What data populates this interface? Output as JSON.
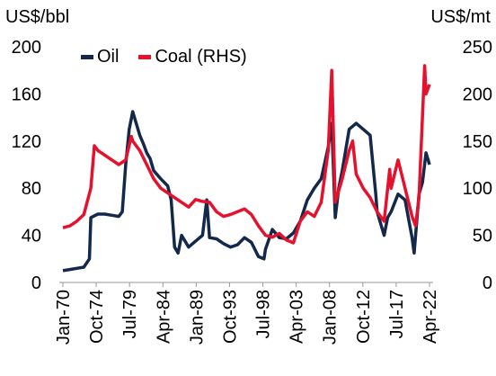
{
  "chart_data": {
    "type": "line",
    "title": "",
    "y_left_label": "US$/bbl",
    "y_right_label": "US$/mt",
    "y_left_lim": [
      0,
      200
    ],
    "y_right_lim": [
      0,
      250
    ],
    "y_left_ticks": [
      "0",
      "40",
      "80",
      "120",
      "160",
      "200"
    ],
    "y_right_ticks": [
      "0",
      "50",
      "100",
      "150",
      "200",
      "250"
    ],
    "x_ticks": [
      "Jan-70",
      "Oct-74",
      "Jul-79",
      "Apr-84",
      "Jan-89",
      "Oct-93",
      "Jul-98",
      "Apr-03",
      "Jan-08",
      "Oct-12",
      "Jul-17",
      "Apr-22"
    ],
    "x_range": [
      1970.0,
      2022.5
    ],
    "legend_position": "top-left",
    "grid": false,
    "series": [
      {
        "name": "Oil",
        "axis": "left",
        "color": "#14284b",
        "points": [
          [
            1970.0,
            10
          ],
          [
            1971.0,
            11
          ],
          [
            1972.0,
            12
          ],
          [
            1973.0,
            13
          ],
          [
            1973.8,
            20
          ],
          [
            1974.0,
            55
          ],
          [
            1975.0,
            58
          ],
          [
            1976.0,
            58
          ],
          [
            1977.0,
            57
          ],
          [
            1978.0,
            56
          ],
          [
            1978.5,
            60
          ],
          [
            1979.0,
            100
          ],
          [
            1979.5,
            130
          ],
          [
            1980.0,
            145
          ],
          [
            1980.5,
            135
          ],
          [
            1981.0,
            125
          ],
          [
            1981.5,
            118
          ],
          [
            1982.0,
            110
          ],
          [
            1982.5,
            105
          ],
          [
            1983.0,
            95
          ],
          [
            1984.0,
            88
          ],
          [
            1985.0,
            82
          ],
          [
            1985.5,
            70
          ],
          [
            1986.0,
            30
          ],
          [
            1986.5,
            25
          ],
          [
            1987.0,
            40
          ],
          [
            1988.0,
            30
          ],
          [
            1989.0,
            35
          ],
          [
            1990.0,
            40
          ],
          [
            1990.6,
            70
          ],
          [
            1991.0,
            38
          ],
          [
            1992.0,
            37
          ],
          [
            1993.0,
            33
          ],
          [
            1994.0,
            30
          ],
          [
            1995.0,
            32
          ],
          [
            1996.0,
            38
          ],
          [
            1997.0,
            34
          ],
          [
            1998.0,
            22
          ],
          [
            1998.8,
            20
          ],
          [
            1999.0,
            28
          ],
          [
            2000.0,
            45
          ],
          [
            2001.0,
            38
          ],
          [
            2002.0,
            37
          ],
          [
            2003.0,
            42
          ],
          [
            2004.0,
            52
          ],
          [
            2005.0,
            70
          ],
          [
            2006.0,
            80
          ],
          [
            2007.0,
            88
          ],
          [
            2008.0,
            115
          ],
          [
            2008.5,
            135
          ],
          [
            2009.0,
            55
          ],
          [
            2009.5,
            80
          ],
          [
            2010.0,
            95
          ],
          [
            2011.0,
            130
          ],
          [
            2012.0,
            135
          ],
          [
            2013.0,
            130
          ],
          [
            2014.0,
            125
          ],
          [
            2014.8,
            75
          ],
          [
            2015.0,
            60
          ],
          [
            2016.0,
            40
          ],
          [
            2016.5,
            55
          ],
          [
            2017.0,
            60
          ],
          [
            2018.0,
            75
          ],
          [
            2019.0,
            70
          ],
          [
            2020.0,
            38
          ],
          [
            2020.3,
            25
          ],
          [
            2021.0,
            75
          ],
          [
            2021.5,
            85
          ],
          [
            2022.0,
            110
          ],
          [
            2022.5,
            100
          ]
        ]
      },
      {
        "name": "Coal (RHS)",
        "axis": "right",
        "color": "#e5122d",
        "points": [
          [
            1970.0,
            58
          ],
          [
            1971.0,
            60
          ],
          [
            1972.0,
            65
          ],
          [
            1973.0,
            72
          ],
          [
            1974.0,
            100
          ],
          [
            1974.5,
            145
          ],
          [
            1975.0,
            140
          ],
          [
            1976.0,
            135
          ],
          [
            1977.0,
            130
          ],
          [
            1978.0,
            125
          ],
          [
            1979.0,
            130
          ],
          [
            1979.8,
            155
          ],
          [
            1980.0,
            150
          ],
          [
            1981.0,
            140
          ],
          [
            1982.0,
            125
          ],
          [
            1983.0,
            110
          ],
          [
            1984.0,
            100
          ],
          [
            1985.0,
            95
          ],
          [
            1986.0,
            90
          ],
          [
            1987.0,
            85
          ],
          [
            1988.0,
            80
          ],
          [
            1989.0,
            88
          ],
          [
            1990.0,
            86
          ],
          [
            1991.0,
            85
          ],
          [
            1992.0,
            75
          ],
          [
            1993.0,
            70
          ],
          [
            1994.0,
            72
          ],
          [
            1995.0,
            75
          ],
          [
            1996.0,
            78
          ],
          [
            1997.0,
            72
          ],
          [
            1998.0,
            60
          ],
          [
            1999.0,
            50
          ],
          [
            2000.0,
            48
          ],
          [
            2001.0,
            52
          ],
          [
            2002.0,
            45
          ],
          [
            2003.0,
            42
          ],
          [
            2004.0,
            65
          ],
          [
            2005.0,
            75
          ],
          [
            2006.0,
            70
          ],
          [
            2007.0,
            85
          ],
          [
            2008.0,
            140
          ],
          [
            2008.5,
            225
          ],
          [
            2009.0,
            85
          ],
          [
            2010.0,
            110
          ],
          [
            2011.0,
            140
          ],
          [
            2011.5,
            150
          ],
          [
            2012.0,
            115
          ],
          [
            2013.0,
            100
          ],
          [
            2014.0,
            90
          ],
          [
            2015.0,
            75
          ],
          [
            2016.0,
            65
          ],
          [
            2016.8,
            120
          ],
          [
            2017.0,
            100
          ],
          [
            2018.0,
            130
          ],
          [
            2019.0,
            100
          ],
          [
            2020.0,
            70
          ],
          [
            2020.5,
            60
          ],
          [
            2021.0,
            90
          ],
          [
            2021.8,
            230
          ],
          [
            2022.0,
            200
          ],
          [
            2022.5,
            210
          ]
        ]
      }
    ]
  }
}
